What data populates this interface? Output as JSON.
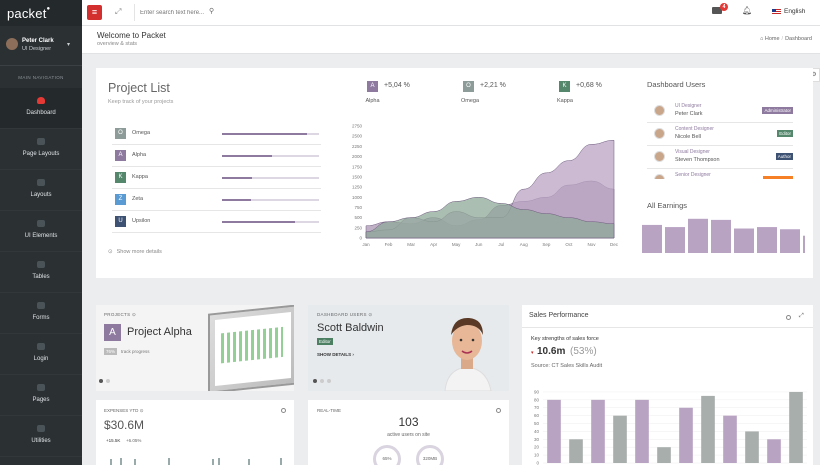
{
  "brand": "packet",
  "user": {
    "name": "Peter Clark",
    "role": "UI Designer"
  },
  "nav_header": "MAIN NAVIGATION",
  "nav": [
    {
      "label": "Dashboard",
      "active": true
    },
    {
      "label": "Page Layouts"
    },
    {
      "label": "Layouts"
    },
    {
      "label": "UI Elements"
    },
    {
      "label": "Tables"
    },
    {
      "label": "Forms"
    },
    {
      "label": "Login"
    },
    {
      "label": "Pages"
    },
    {
      "label": "Utilities"
    }
  ],
  "topbar": {
    "search_placeholder": "Enter search text here...",
    "mail_count": "4",
    "language": "English"
  },
  "header": {
    "title": "Welcome to Packet",
    "subtitle": "overview & stats",
    "crumb_home": "Home",
    "crumb_current": "Dashboard"
  },
  "colors": {
    "purple": "#8e7a9f",
    "grey": "#8e9c99",
    "green": "#54876c",
    "blue": "#5a9bd3",
    "navy": "#3e5273",
    "red": "#d32f2f",
    "orange": "#f58025"
  },
  "project_list": {
    "title": "Project List",
    "subtitle": "Keep track of your projects",
    "show_more": "Show more details",
    "items": [
      {
        "badge": "O",
        "name": "Omega",
        "progress": 0.88,
        "color": "#8e9c99"
      },
      {
        "badge": "A",
        "name": "Alpha",
        "progress": 0.52,
        "color": "#8e7a9f"
      },
      {
        "badge": "K",
        "name": "Kappa",
        "progress": 0.31,
        "color": "#54876c"
      },
      {
        "badge": "Z",
        "name": "Zeta",
        "progress": 0.3,
        "color": "#5a9bd3"
      },
      {
        "badge": "U",
        "name": "Upsilon",
        "progress": 0.75,
        "color": "#3e5273"
      }
    ]
  },
  "stats": [
    {
      "badge": "A",
      "value": "+5,04 %",
      "label": "Alpha",
      "color": "#8e7a9f"
    },
    {
      "badge": "O",
      "value": "+2,21 %",
      "label": "Omega",
      "color": "#8e9c99"
    },
    {
      "badge": "K",
      "value": "+0,68 %",
      "label": "Kappa",
      "color": "#54876c"
    }
  ],
  "chart_data": [
    {
      "type": "area",
      "categories": [
        "Jan",
        "Feb",
        "Mar",
        "Apr",
        "May",
        "Jun",
        "Jul",
        "Aug",
        "Sep",
        "Oct",
        "Nov",
        "Dec"
      ],
      "ylim": [
        0,
        2800
      ],
      "yticks": [
        0,
        250,
        500,
        750,
        1000,
        1250,
        1500,
        1750,
        2000,
        2250,
        2500,
        2750
      ],
      "series": [
        {
          "values": [
            300,
            400,
            350,
            500,
            300,
            450,
            800,
            900,
            1000,
            1300,
            1400,
            1200
          ],
          "color": "#a995b3"
        },
        {
          "values": [
            150,
            200,
            500,
            400,
            650,
            500,
            500,
            1200,
            1600,
            1900,
            2300,
            2400
          ],
          "color": "#b9a3c3"
        },
        {
          "values": [
            150,
            400,
            500,
            650,
            900,
            1000,
            850,
            700,
            600,
            500,
            400,
            350
          ],
          "color": "#8fa898"
        }
      ]
    },
    {
      "type": "bar",
      "values": [
        78,
        72,
        95,
        92,
        68,
        72,
        66,
        48
      ],
      "color": "#b9a3c3"
    },
    {
      "type": "bar",
      "ylim": [
        0,
        95
      ],
      "yticks": [
        0,
        10,
        20,
        30,
        40,
        50,
        60,
        70,
        80,
        90
      ],
      "series": [
        {
          "name": "purple",
          "values": [
            80,
            0,
            80,
            0,
            80,
            0,
            70,
            0,
            60,
            0,
            30,
            0
          ],
          "color": "#b9a3c3"
        },
        {
          "name": "grey",
          "values": [
            0,
            30,
            0,
            60,
            0,
            20,
            0,
            85,
            0,
            40,
            0,
            90
          ],
          "color": "#a8aeac"
        }
      ]
    }
  ],
  "dashboard_users": {
    "title": "Dashboard Users",
    "users": [
      {
        "role": "UI Designer",
        "name": "Peter Clark",
        "tag": "Administrator",
        "tag_color": "#8e7a9f"
      },
      {
        "role": "Content Designer",
        "name": "Nicole Bell",
        "tag": "Editor",
        "tag_color": "#54876c"
      },
      {
        "role": "Visual Designer",
        "name": "Steven Thompson",
        "tag": "Author",
        "tag_color": "#3e5273"
      },
      {
        "role": "Senior Designer",
        "name": "",
        "tag": "",
        "tag_color": "#f58025"
      }
    ]
  },
  "all_earnings": {
    "title": "All Earnings"
  },
  "projects_card": {
    "tag": "PROJECTS",
    "badge": "A",
    "name": "Project Alpha",
    "pct": "76%",
    "label": "track progress"
  },
  "users_card": {
    "tag": "DASHBOARD USERS",
    "name": "Scott Baldwin",
    "role": "Editor",
    "show": "SHOW DETAILS"
  },
  "expenses": {
    "tag": "EXPENSES YTD",
    "value": "$30.6M",
    "delta1": "+15.5K",
    "delta2": "+6.05%"
  },
  "realtime": {
    "tag": "REAL-TIME",
    "count": "103",
    "label": "active users on site",
    "ring1": "65%",
    "ring2": "320MB"
  },
  "sales": {
    "title": "Sales Performance",
    "key": "Key strengths of sales force",
    "big": "10.6m",
    "pct": "(53%)",
    "source": "Source: CT Sales Skills Audit"
  }
}
